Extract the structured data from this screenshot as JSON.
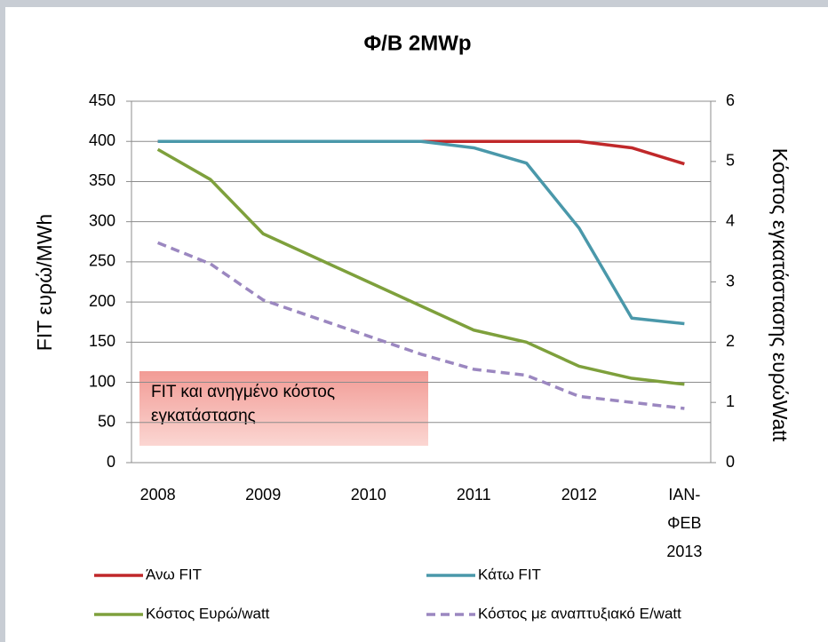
{
  "chart_data": {
    "type": "line",
    "title": "Φ/Β 2MWp",
    "y_label": "FIT ευρώ/MWh",
    "y2_label": "Κόστος εγκατάστασης  ευρώWatt",
    "annotation": "FIT και ανηγμένο κόστος εγκατάστασης",
    "categories": [
      "2008",
      null,
      "2009",
      null,
      "2010",
      null,
      "2011",
      null,
      "2012",
      null,
      "ΙΑΝ- ΦΕΒ 2013"
    ],
    "ylim": [
      0,
      450
    ],
    "yticks": [
      0,
      50,
      100,
      150,
      200,
      250,
      300,
      350,
      400,
      450
    ],
    "y2lim": [
      0,
      6
    ],
    "y2ticks": [
      0,
      1,
      2,
      3,
      4,
      5,
      6
    ],
    "grid": true,
    "series": [
      {
        "name": "Άνω FIT",
        "color": "#c0282a",
        "values": [
          400,
          400,
          400,
          400,
          400,
          400,
          400,
          400,
          400,
          392,
          372
        ]
      },
      {
        "name": "Κάτω FIT",
        "color": "#4a98aa",
        "values": [
          400,
          400,
          400,
          400,
          400,
          400,
          392,
          373,
          292,
          180,
          173
        ]
      },
      {
        "name": "Κόστος Ευρώ/watt",
        "color": "#7ea03c",
        "axis": "y2",
        "values": [
          5.2,
          4.7,
          3.8,
          3.4,
          3.0,
          2.6,
          2.2,
          2.0,
          1.6,
          1.4,
          1.3
        ]
      },
      {
        "name": "Κόστος με αναπτυξιακό Ε/watt",
        "color": "#9b87c0",
        "axis": "y2",
        "dashed": true,
        "values": [
          3.65,
          3.3,
          2.7,
          2.4,
          2.1,
          1.8,
          1.55,
          1.45,
          1.1,
          1.0,
          0.9
        ]
      }
    ]
  }
}
